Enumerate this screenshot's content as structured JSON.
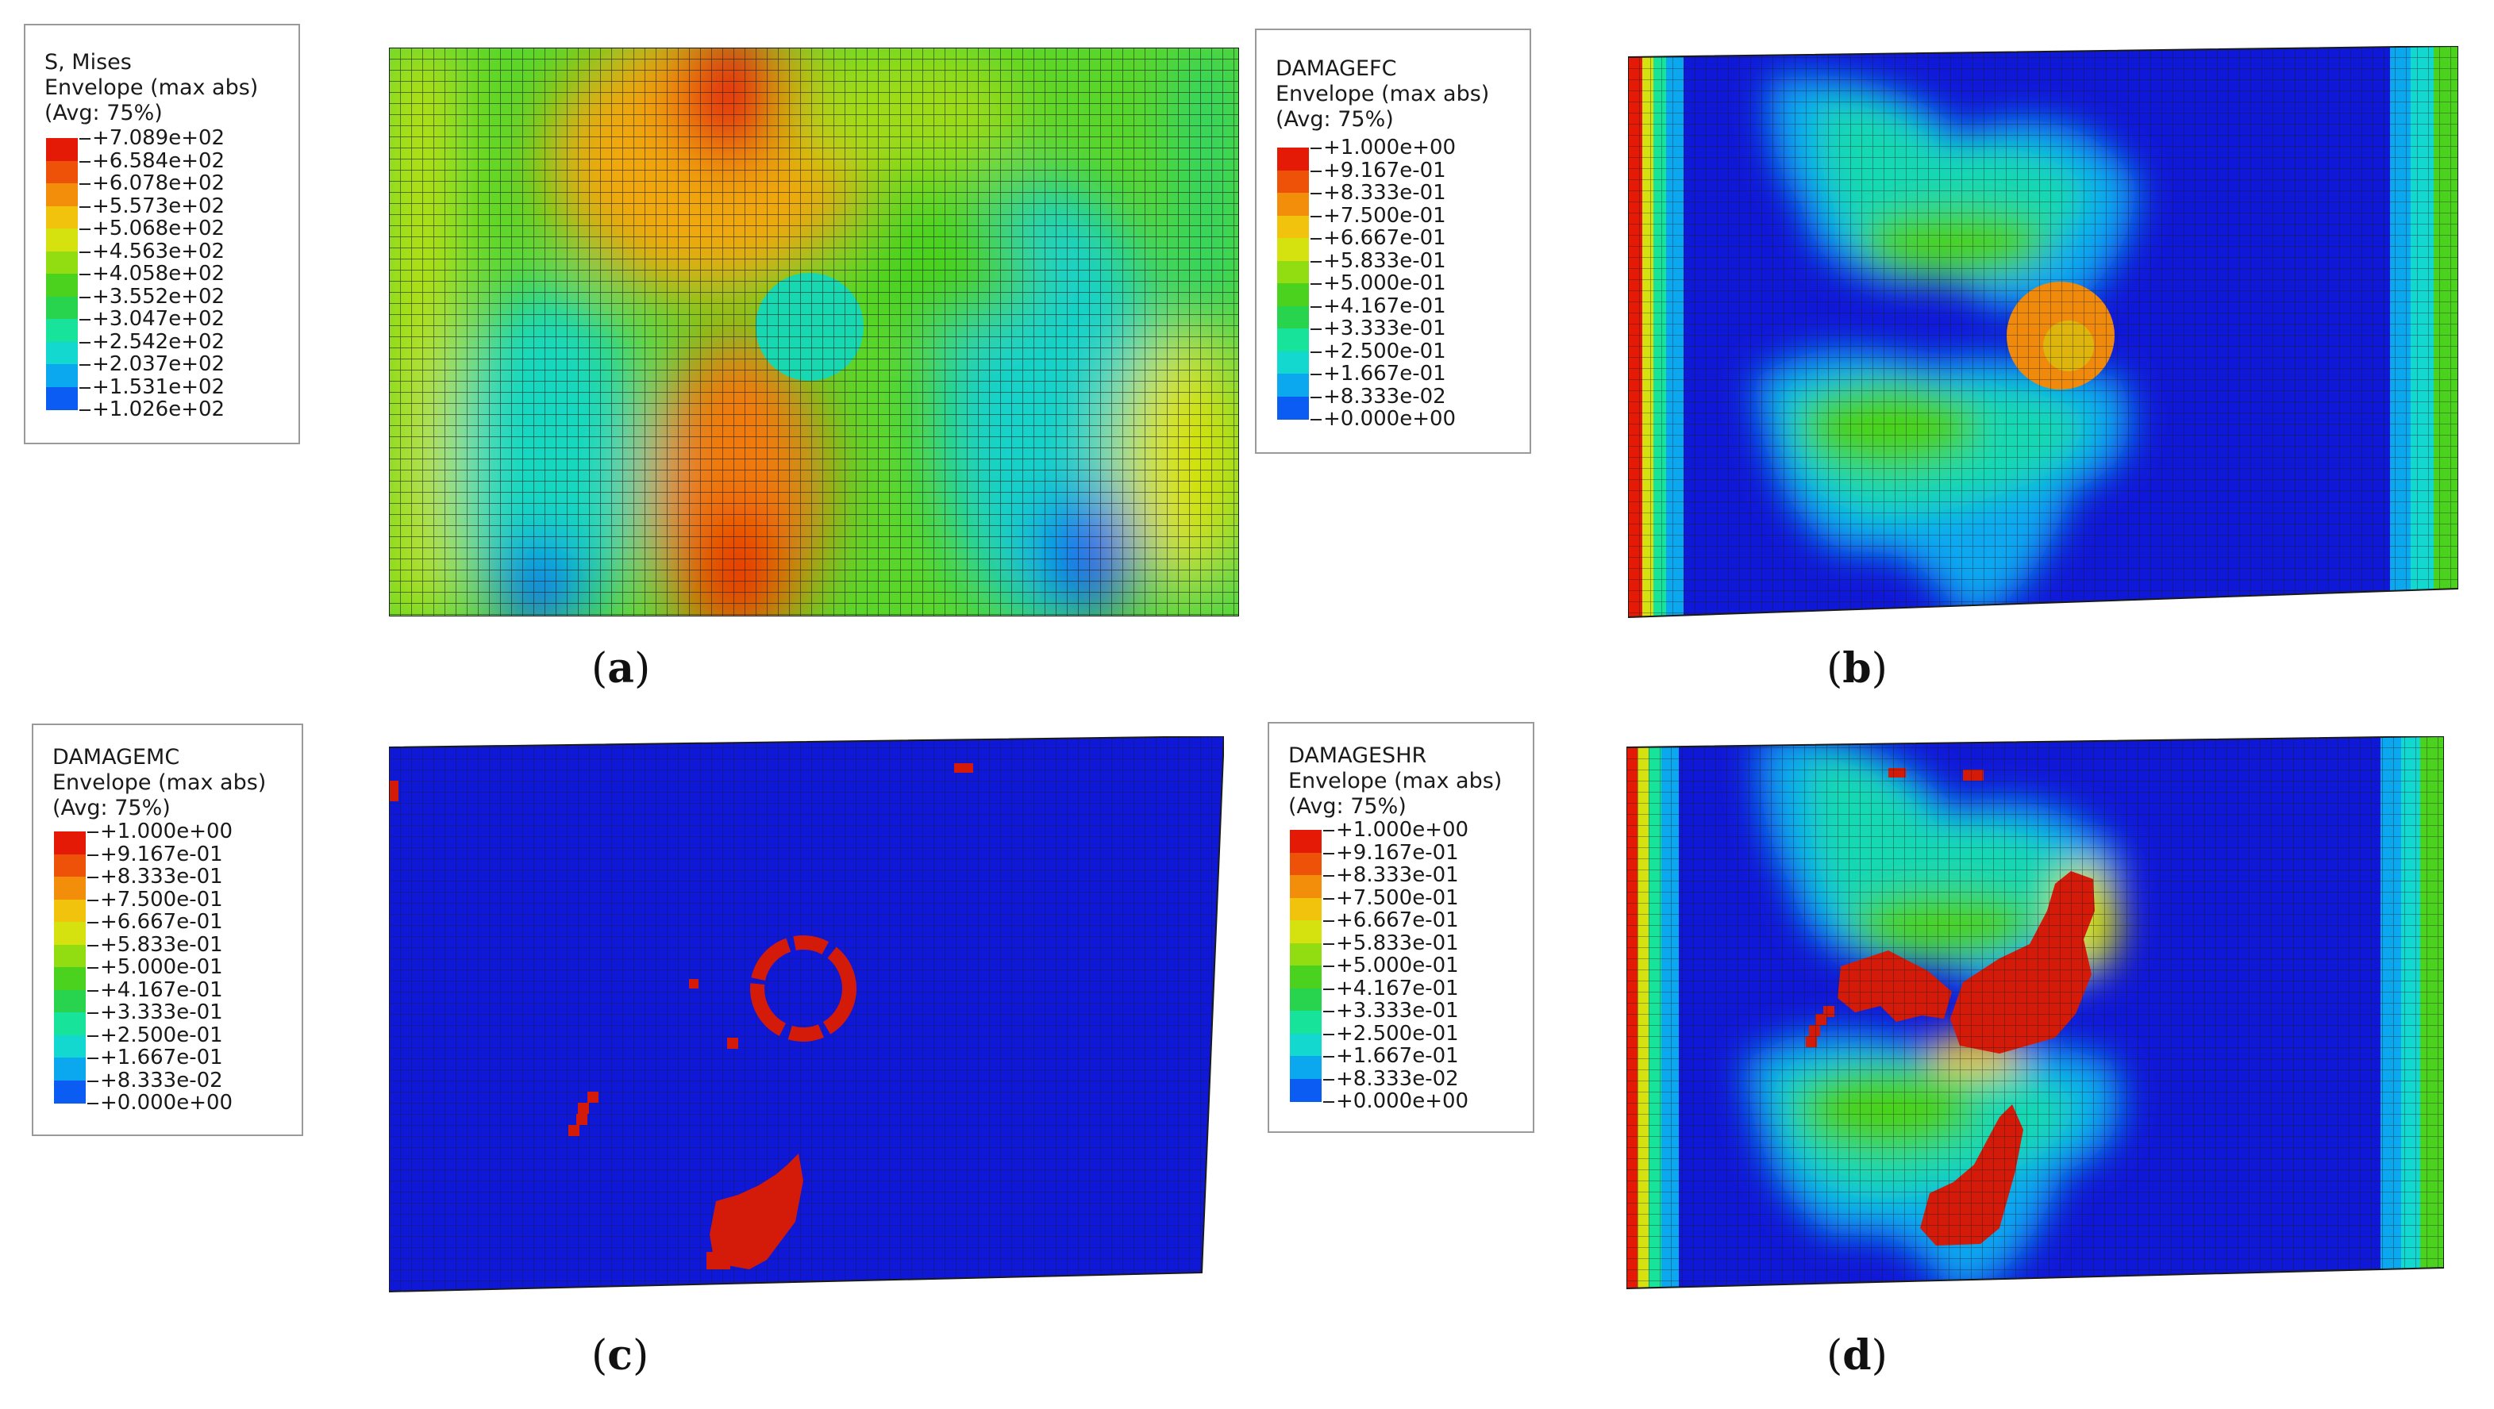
{
  "colors": {
    "band_scale": [
      "#0a10e0",
      "#0a5cf2",
      "#0ba8f0",
      "#12d8d0",
      "#18e39a",
      "#28d44e",
      "#4ad21f",
      "#92dc12",
      "#d6e20f",
      "#f2c30c",
      "#f28e0a",
      "#ee5208",
      "#e41a06"
    ],
    "background_blue": "#1018d8",
    "damage_red": "#d41a08",
    "mesh_line": "#1a1a1a"
  },
  "panels": [
    {
      "id": "a",
      "caption_letter": "a",
      "legend": {
        "variable": "S, Mises",
        "envelope": "Envelope (max abs)",
        "avg": "(Avg: 75%)",
        "values": [
          "+7.089e+02",
          "+6.584e+02",
          "+6.078e+02",
          "+5.573e+02",
          "+5.068e+02",
          "+4.563e+02",
          "+4.058e+02",
          "+3.552e+02",
          "+3.047e+02",
          "+2.542e+02",
          "+2.037e+02",
          "+1.531e+02",
          "+1.026e+02"
        ]
      },
      "contour_icon": "stress-contour-mesh"
    },
    {
      "id": "b",
      "caption_letter": "b",
      "legend": {
        "variable": "DAMAGEFC",
        "envelope": "Envelope (max abs)",
        "avg": "(Avg: 75%)",
        "values": [
          "+1.000e+00",
          "+9.167e-01",
          "+8.333e-01",
          "+7.500e-01",
          "+6.667e-01",
          "+5.833e-01",
          "+5.000e-01",
          "+4.167e-01",
          "+3.333e-01",
          "+2.500e-01",
          "+1.667e-01",
          "+8.333e-02",
          "+0.000e+00"
        ]
      },
      "contour_icon": "fiber-compression-damage-mesh"
    },
    {
      "id": "c",
      "caption_letter": "c",
      "legend": {
        "variable": "DAMAGEMC",
        "envelope": "Envelope (max abs)",
        "avg": "(Avg: 75%)",
        "values": [
          "+1.000e+00",
          "+9.167e-01",
          "+8.333e-01",
          "+7.500e-01",
          "+6.667e-01",
          "+5.833e-01",
          "+5.000e-01",
          "+4.167e-01",
          "+3.333e-01",
          "+2.500e-01",
          "+1.667e-01",
          "+8.333e-02",
          "+0.000e+00"
        ]
      },
      "contour_icon": "matrix-compression-damage-mesh"
    },
    {
      "id": "d",
      "caption_letter": "d",
      "legend": {
        "variable": "DAMAGESHR",
        "envelope": "Envelope (max abs)",
        "avg": "(Avg: 75%)",
        "values": [
          "+1.000e+00",
          "+9.167e-01",
          "+8.333e-01",
          "+7.500e-01",
          "+6.667e-01",
          "+5.833e-01",
          "+5.000e-01",
          "+4.167e-01",
          "+3.333e-01",
          "+2.500e-01",
          "+1.667e-01",
          "+8.333e-02",
          "+0.000e+00"
        ]
      },
      "contour_icon": "shear-damage-mesh"
    }
  ]
}
